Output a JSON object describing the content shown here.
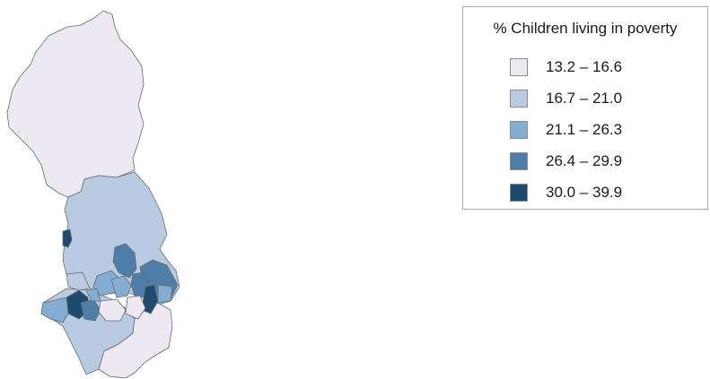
{
  "legend": {
    "title": "% Children living in poverty",
    "classes": [
      {
        "range": "13.2 – 16.6",
        "min": 13.2,
        "max": 16.6,
        "color": "#ece9f3"
      },
      {
        "range": "16.7 – 21.0",
        "min": 16.7,
        "max": 21.0,
        "color": "#b9cbe3"
      },
      {
        "range": "21.1 – 26.3",
        "min": 21.1,
        "max": 26.3,
        "color": "#83add3"
      },
      {
        "range": "26.4 – 29.9",
        "min": 26.4,
        "max": 29.9,
        "color": "#4e7ea8"
      },
      {
        "range": "30.0 – 39.9",
        "min": 30.0,
        "max": 39.9,
        "color": "#1e4a6d"
      }
    ]
  },
  "map": {
    "regions": [
      {
        "id": "north",
        "class": 0
      },
      {
        "id": "central",
        "class": 1
      },
      {
        "id": "south-west",
        "class": 1
      },
      {
        "id": "south",
        "class": 0
      },
      {
        "id": "coastal-town",
        "class": 4
      },
      {
        "id": "district-a",
        "class": 3
      },
      {
        "id": "district-b",
        "class": 2
      },
      {
        "id": "district-c",
        "class": 2
      },
      {
        "id": "district-d",
        "class": 3
      },
      {
        "id": "district-e",
        "class": 3
      },
      {
        "id": "district-f",
        "class": 4
      },
      {
        "id": "district-g",
        "class": 0
      },
      {
        "id": "district-h",
        "class": 2
      },
      {
        "id": "district-i",
        "class": 4
      },
      {
        "id": "district-j",
        "class": 3
      },
      {
        "id": "district-k",
        "class": 2
      },
      {
        "id": "district-l",
        "class": 0
      },
      {
        "id": "district-m",
        "class": 1
      },
      {
        "id": "district-n",
        "class": 2
      }
    ]
  }
}
